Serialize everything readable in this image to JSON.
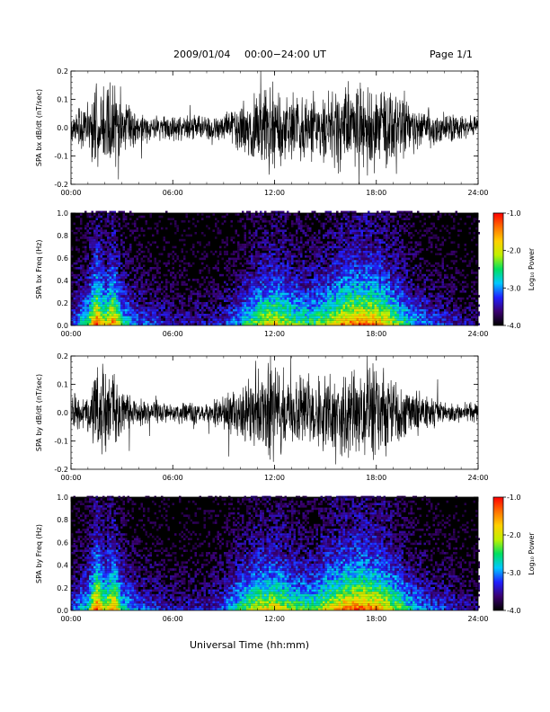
{
  "header": {
    "date_label": "2009/01/04",
    "range_label": "00:00−24:00 UT",
    "page_label": "Page 1/1"
  },
  "x_axis": {
    "label": "Universal Time (hh:mm)",
    "ticks": [
      "00:00",
      "06:00",
      "12:00",
      "18:00",
      "24:00"
    ],
    "range_hours": [
      0,
      24
    ]
  },
  "colorbar": {
    "label": "Log₁₀ Power",
    "ticks": [
      "-1.0",
      "-2.0",
      "-3.0",
      "-4.0"
    ],
    "range": [
      -4.0,
      -1.0
    ],
    "colors": [
      "#000000",
      "#3a0070",
      "#2020ff",
      "#00c8ff",
      "#00e060",
      "#c0f000",
      "#ffd000",
      "#ff7000",
      "#ff0000"
    ]
  },
  "chart_data": [
    {
      "type": "line",
      "title": "",
      "ylabel": "SPA bx dB/dt (nT/sec)",
      "yticks": [
        "0.2",
        "0.1",
        "0.0",
        "-0.1",
        "-0.2"
      ],
      "ylim": [
        -0.2,
        0.2
      ],
      "xlim": [
        0,
        24
      ],
      "series_color": "#000000",
      "envelope": {
        "x_hours": [
          0,
          1,
          1.5,
          2,
          2.5,
          3,
          4,
          6,
          8,
          9,
          10,
          11,
          12,
          13,
          14,
          15,
          16,
          17,
          18,
          19,
          20,
          21,
          22,
          23,
          24
        ],
        "amplitude": [
          0.06,
          0.1,
          0.2,
          0.15,
          0.2,
          0.1,
          0.07,
          0.05,
          0.05,
          0.06,
          0.1,
          0.15,
          0.18,
          0.14,
          0.12,
          0.14,
          0.18,
          0.2,
          0.19,
          0.15,
          0.1,
          0.08,
          0.06,
          0.05,
          0.05
        ]
      }
    },
    {
      "type": "heatmap",
      "title": "",
      "ylabel": "SPA bx Freq (Hz)",
      "yticks": [
        "1.0",
        "0.8",
        "0.6",
        "0.4",
        "0.2",
        "0.0"
      ],
      "ylim": [
        0.0,
        1.0
      ],
      "xlim": [
        0,
        24
      ],
      "zlim": [
        -4.0,
        -1.0
      ],
      "activity_profile": {
        "x_hours": [
          0,
          1,
          1.5,
          2,
          2.5,
          3,
          4,
          6,
          8,
          9,
          10,
          11,
          12,
          13,
          14,
          15,
          16,
          17,
          18,
          19,
          20,
          21,
          22,
          23,
          24
        ],
        "level": [
          0.25,
          0.5,
          0.9,
          0.6,
          0.85,
          0.45,
          0.3,
          0.2,
          0.2,
          0.25,
          0.4,
          0.6,
          0.7,
          0.55,
          0.5,
          0.6,
          0.8,
          0.85,
          0.8,
          0.6,
          0.4,
          0.3,
          0.25,
          0.2,
          0.15
        ]
      }
    },
    {
      "type": "line",
      "title": "",
      "ylabel": "SPA by dB/dt (nT/sec)",
      "yticks": [
        "0.2",
        "0.1",
        "0.0",
        "-0.1",
        "-0.2"
      ],
      "ylim": [
        -0.2,
        0.2
      ],
      "xlim": [
        0,
        24
      ],
      "series_color": "#000000",
      "envelope": {
        "x_hours": [
          0,
          1,
          1.5,
          2,
          2.5,
          3,
          4,
          6,
          8,
          9,
          10,
          11,
          12,
          13,
          14,
          15,
          16,
          17,
          18,
          19,
          20,
          21,
          22,
          23,
          24
        ],
        "amplitude": [
          0.05,
          0.08,
          0.2,
          0.16,
          0.2,
          0.09,
          0.06,
          0.04,
          0.05,
          0.07,
          0.12,
          0.18,
          0.2,
          0.16,
          0.12,
          0.15,
          0.19,
          0.2,
          0.2,
          0.14,
          0.1,
          0.07,
          0.05,
          0.04,
          0.04
        ]
      }
    },
    {
      "type": "heatmap",
      "title": "",
      "ylabel": "SPA by Freq (Hz)",
      "yticks": [
        "1.0",
        "0.8",
        "0.6",
        "0.4",
        "0.2",
        "0.0"
      ],
      "ylim": [
        0.0,
        1.0
      ],
      "xlim": [
        0,
        24
      ],
      "zlim": [
        -4.0,
        -1.0
      ],
      "activity_profile": {
        "x_hours": [
          0,
          1,
          1.5,
          2,
          2.5,
          3,
          4,
          6,
          8,
          9,
          10,
          11,
          12,
          13,
          14,
          15,
          16,
          17,
          18,
          19,
          20,
          21,
          22,
          23,
          24
        ],
        "level": [
          0.25,
          0.45,
          0.9,
          0.6,
          0.85,
          0.45,
          0.3,
          0.2,
          0.22,
          0.3,
          0.5,
          0.65,
          0.7,
          0.55,
          0.5,
          0.65,
          0.8,
          0.85,
          0.8,
          0.6,
          0.4,
          0.3,
          0.25,
          0.2,
          0.15
        ]
      }
    }
  ]
}
